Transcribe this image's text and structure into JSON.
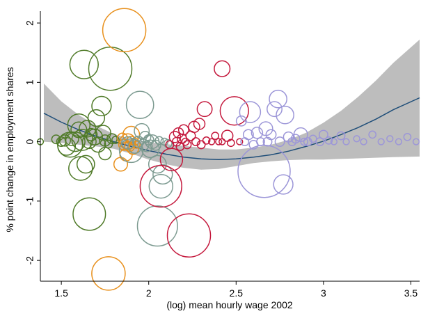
{
  "chart_data": {
    "type": "scatter",
    "title": "",
    "xlabel": "(log) mean hourly wage 2002",
    "ylabel": "% point change in employment shares",
    "xlim": [
      1.38,
      3.55
    ],
    "ylim": [
      -2.35,
      2.2
    ],
    "x_ticks": [
      {
        "value": 1.5,
        "label": "1.5"
      },
      {
        "value": 2,
        "label": "2"
      },
      {
        "value": 2.5,
        "label": "2.5"
      },
      {
        "value": 3,
        "label": "3"
      },
      {
        "value": 3.5,
        "label": "3.5"
      }
    ],
    "y_ticks": [
      {
        "value": 2,
        "label": "2"
      },
      {
        "value": 1,
        "label": "1"
      },
      {
        "value": 0,
        "label": "0"
      },
      {
        "value": -1,
        "label": "-1"
      },
      {
        "value": -2,
        "label": "-2"
      }
    ],
    "grid": false,
    "legend": "none",
    "fit": {
      "kind": "quadratic",
      "color": "#1f4e79",
      "band_color": "#bdbdbd",
      "points": [
        {
          "x": 1.4,
          "y": 0.48,
          "lo": 0.0,
          "hi": 0.98
        },
        {
          "x": 1.5,
          "y": 0.33,
          "lo": -0.02,
          "hi": 0.68
        },
        {
          "x": 1.6,
          "y": 0.2,
          "lo": -0.05,
          "hi": 0.45
        },
        {
          "x": 1.7,
          "y": 0.09,
          "lo": -0.08,
          "hi": 0.27
        },
        {
          "x": 1.8,
          "y": 0.0,
          "lo": -0.12,
          "hi": 0.13
        },
        {
          "x": 1.9,
          "y": -0.08,
          "lo": -0.2,
          "hi": 0.04
        },
        {
          "x": 2.0,
          "y": -0.15,
          "lo": -0.3,
          "hi": -0.01
        },
        {
          "x": 2.1,
          "y": -0.21,
          "lo": -0.38,
          "hi": -0.04
        },
        {
          "x": 2.2,
          "y": -0.26,
          "lo": -0.44,
          "hi": -0.07
        },
        {
          "x": 2.3,
          "y": -0.29,
          "lo": -0.47,
          "hi": -0.1
        },
        {
          "x": 2.4,
          "y": -0.3,
          "lo": -0.46,
          "hi": -0.13
        },
        {
          "x": 2.5,
          "y": -0.29,
          "lo": -0.41,
          "hi": -0.13
        },
        {
          "x": 2.6,
          "y": -0.26,
          "lo": -0.36,
          "hi": -0.1
        },
        {
          "x": 2.7,
          "y": -0.22,
          "lo": -0.33,
          "hi": -0.05
        },
        {
          "x": 2.8,
          "y": -0.16,
          "lo": -0.31,
          "hi": 0.03
        },
        {
          "x": 2.9,
          "y": -0.08,
          "lo": -0.3,
          "hi": 0.15
        },
        {
          "x": 3.0,
          "y": 0.01,
          "lo": -0.3,
          "hi": 0.32
        },
        {
          "x": 3.1,
          "y": 0.12,
          "lo": -0.29,
          "hi": 0.52
        },
        {
          "x": 3.2,
          "y": 0.24,
          "lo": -0.28,
          "hi": 0.76
        },
        {
          "x": 3.3,
          "y": 0.38,
          "lo": -0.27,
          "hi": 1.03
        },
        {
          "x": 3.4,
          "y": 0.54,
          "lo": -0.26,
          "hi": 1.33
        },
        {
          "x": 3.55,
          "y": 0.74,
          "lo": -0.25,
          "hi": 1.72
        }
      ]
    },
    "series": [
      {
        "color": "#4f7a28",
        "points": [
          {
            "x": 1.38,
            "y": 0.0,
            "size": 0.3
          },
          {
            "x": 1.47,
            "y": 0.04,
            "size": 0.6
          },
          {
            "x": 1.5,
            "y": 0.0,
            "size": 0.7
          },
          {
            "x": 1.52,
            "y": 0.02,
            "size": 1.0
          },
          {
            "x": 1.53,
            "y": -0.08,
            "size": 2.5
          },
          {
            "x": 1.55,
            "y": -0.05,
            "size": 5.0
          },
          {
            "x": 1.56,
            "y": 0.05,
            "size": 1.5
          },
          {
            "x": 1.58,
            "y": 0.0,
            "size": 3.0
          },
          {
            "x": 1.6,
            "y": 0.28,
            "size": 4.0
          },
          {
            "x": 1.6,
            "y": 0.2,
            "size": 2.0
          },
          {
            "x": 1.61,
            "y": -0.45,
            "size": 4.5
          },
          {
            "x": 1.62,
            "y": 0.03,
            "size": 3.5
          },
          {
            "x": 1.63,
            "y": 1.3,
            "size": 6.5
          },
          {
            "x": 1.64,
            "y": -0.38,
            "size": 2.5
          },
          {
            "x": 1.65,
            "y": 0.22,
            "size": 2.2
          },
          {
            "x": 1.66,
            "y": 0.0,
            "size": 1.5
          },
          {
            "x": 1.67,
            "y": 0.12,
            "size": 1.2
          },
          {
            "x": 1.66,
            "y": -1.22,
            "size": 8.5
          },
          {
            "x": 1.69,
            "y": 0.08,
            "size": 2.0
          },
          {
            "x": 1.7,
            "y": 0.4,
            "size": 2.2
          },
          {
            "x": 1.71,
            "y": -0.05,
            "size": 1.8
          },
          {
            "x": 1.73,
            "y": 0.6,
            "size": 3.0
          },
          {
            "x": 1.74,
            "y": 0.15,
            "size": 1.8
          },
          {
            "x": 1.75,
            "y": -0.2,
            "size": 1.2
          },
          {
            "x": 1.75,
            "y": 0.02,
            "size": 1.0
          },
          {
            "x": 1.77,
            "y": -0.04,
            "size": 0.5
          },
          {
            "x": 1.78,
            "y": 1.23,
            "size": 15.0
          },
          {
            "x": 1.79,
            "y": 0.05,
            "size": 0.8
          },
          {
            "x": 1.81,
            "y": 0.03,
            "size": 0.4
          }
        ]
      },
      {
        "color": "#e8901c",
        "points": [
          {
            "x": 1.77,
            "y": -2.22,
            "size": 9.0
          },
          {
            "x": 1.84,
            "y": -0.38,
            "size": 1.5
          },
          {
            "x": 1.85,
            "y": 0.06,
            "size": 0.8
          },
          {
            "x": 1.86,
            "y": 1.88,
            "size": 15.0
          },
          {
            "x": 1.86,
            "y": -0.05,
            "size": 1.0
          },
          {
            "x": 1.87,
            "y": -0.22,
            "size": 1.2
          },
          {
            "x": 1.88,
            "y": 0.0,
            "size": 2.0
          },
          {
            "x": 1.89,
            "y": -0.08,
            "size": 0.8
          },
          {
            "x": 1.9,
            "y": 0.02,
            "size": 0.6
          },
          {
            "x": 1.9,
            "y": 0.12,
            "size": 2.2
          },
          {
            "x": 1.91,
            "y": -0.12,
            "size": 1.0
          },
          {
            "x": 1.92,
            "y": 0.0,
            "size": 0.5
          },
          {
            "x": 1.93,
            "y": -0.05,
            "size": 0.4
          }
        ]
      },
      {
        "color": "#7c9a90",
        "points": [
          {
            "x": 1.88,
            "y": -0.02,
            "size": 1.2
          },
          {
            "x": 1.9,
            "y": -0.15,
            "size": 4.5
          },
          {
            "x": 1.92,
            "y": -0.08,
            "size": 1.5
          },
          {
            "x": 1.94,
            "y": 0.0,
            "size": 1.0
          },
          {
            "x": 1.95,
            "y": 0.62,
            "size": 6.0
          },
          {
            "x": 1.96,
            "y": 0.18,
            "size": 1.8
          },
          {
            "x": 1.97,
            "y": -0.05,
            "size": 1.0
          },
          {
            "x": 1.98,
            "y": 0.08,
            "size": 1.0
          },
          {
            "x": 1.99,
            "y": -0.08,
            "size": 0.9
          },
          {
            "x": 2.0,
            "y": 0.03,
            "size": 0.8
          },
          {
            "x": 2.01,
            "y": -0.12,
            "size": 2.5
          },
          {
            "x": 2.02,
            "y": 0.0,
            "size": 1.5
          },
          {
            "x": 2.04,
            "y": -0.06,
            "size": 0.8
          },
          {
            "x": 2.05,
            "y": -1.42,
            "size": 13.0
          },
          {
            "x": 2.05,
            "y": -0.38,
            "size": 2.5
          },
          {
            "x": 2.06,
            "y": 0.02,
            "size": 0.5
          },
          {
            "x": 2.07,
            "y": -0.75,
            "size": 4.5
          },
          {
            "x": 2.08,
            "y": -0.55,
            "size": 3.0
          },
          {
            "x": 2.09,
            "y": 0.0,
            "size": 0.4
          },
          {
            "x": 2.11,
            "y": -0.03,
            "size": 0.5
          }
        ]
      },
      {
        "color": "#c4183c",
        "points": [
          {
            "x": 2.07,
            "y": -0.75,
            "size": 14.0
          },
          {
            "x": 2.12,
            "y": -0.05,
            "size": 0.5
          },
          {
            "x": 2.13,
            "y": -0.3,
            "size": 4.0
          },
          {
            "x": 2.15,
            "y": 0.08,
            "size": 1.0
          },
          {
            "x": 2.16,
            "y": 0.0,
            "size": 0.6
          },
          {
            "x": 2.17,
            "y": 0.15,
            "size": 0.8
          },
          {
            "x": 2.18,
            "y": -0.08,
            "size": 0.5
          },
          {
            "x": 2.19,
            "y": 0.05,
            "size": 0.7
          },
          {
            "x": 2.2,
            "y": 0.2,
            "size": 0.8
          },
          {
            "x": 2.21,
            "y": 0.0,
            "size": 0.4
          },
          {
            "x": 2.22,
            "y": -0.05,
            "size": 0.5
          },
          {
            "x": 2.23,
            "y": -1.58,
            "size": 15.0
          },
          {
            "x": 2.24,
            "y": 0.1,
            "size": 0.7
          },
          {
            "x": 2.26,
            "y": 0.25,
            "size": 1.0
          },
          {
            "x": 2.27,
            "y": 0.0,
            "size": 0.5
          },
          {
            "x": 2.29,
            "y": 0.3,
            "size": 1.0
          },
          {
            "x": 2.3,
            "y": -0.05,
            "size": 0.5
          },
          {
            "x": 2.32,
            "y": 0.55,
            "size": 1.8
          },
          {
            "x": 2.33,
            "y": 0.02,
            "size": 0.4
          },
          {
            "x": 2.36,
            "y": 0.0,
            "size": 0.3
          },
          {
            "x": 2.38,
            "y": 0.1,
            "size": 0.4
          },
          {
            "x": 2.4,
            "y": 0.0,
            "size": 0.3
          },
          {
            "x": 2.42,
            "y": 1.23,
            "size": 2.0
          },
          {
            "x": 2.42,
            "y": 0.0,
            "size": 0.3
          },
          {
            "x": 2.45,
            "y": 0.1,
            "size": 1.0
          },
          {
            "x": 2.47,
            "y": -0.02,
            "size": 0.4
          },
          {
            "x": 2.49,
            "y": 0.52,
            "size": 6.5
          },
          {
            "x": 2.52,
            "y": 0.0,
            "size": 0.3
          }
        ]
      },
      {
        "color": "#9c96d8",
        "points": [
          {
            "x": 2.53,
            "y": 0.35,
            "size": 0.8
          },
          {
            "x": 2.55,
            "y": 0.0,
            "size": 0.5
          },
          {
            "x": 2.57,
            "y": 0.12,
            "size": 0.8
          },
          {
            "x": 2.58,
            "y": 0.5,
            "size": 3.5
          },
          {
            "x": 2.6,
            "y": -0.05,
            "size": 0.6
          },
          {
            "x": 2.62,
            "y": 0.15,
            "size": 1.0
          },
          {
            "x": 2.64,
            "y": 0.0,
            "size": 0.5
          },
          {
            "x": 2.66,
            "y": -0.5,
            "size": 22.0
          },
          {
            "x": 2.67,
            "y": 0.22,
            "size": 1.5
          },
          {
            "x": 2.68,
            "y": 0.0,
            "size": 0.6
          },
          {
            "x": 2.7,
            "y": 0.12,
            "size": 0.8
          },
          {
            "x": 2.72,
            "y": 0.55,
            "size": 1.8
          },
          {
            "x": 2.74,
            "y": 0.72,
            "size": 2.5
          },
          {
            "x": 2.75,
            "y": 0.0,
            "size": 0.7
          },
          {
            "x": 2.77,
            "y": -0.72,
            "size": 3.0
          },
          {
            "x": 2.78,
            "y": 0.45,
            "size": 2.5
          },
          {
            "x": 2.8,
            "y": 0.08,
            "size": 0.8
          },
          {
            "x": 2.82,
            "y": 0.0,
            "size": 0.5
          },
          {
            "x": 2.84,
            "y": 0.05,
            "size": 0.6
          },
          {
            "x": 2.87,
            "y": 0.12,
            "size": 1.5
          },
          {
            "x": 2.89,
            "y": 0.0,
            "size": 0.4
          },
          {
            "x": 2.91,
            "y": 0.0,
            "size": 0.5
          },
          {
            "x": 2.94,
            "y": 0.05,
            "size": 0.4
          },
          {
            "x": 2.98,
            "y": 0.0,
            "size": 0.5
          },
          {
            "x": 3.0,
            "y": 0.12,
            "size": 0.6
          },
          {
            "x": 3.03,
            "y": 0.02,
            "size": 0.4
          },
          {
            "x": 3.06,
            "y": 0.0,
            "size": 0.3
          },
          {
            "x": 3.1,
            "y": 0.1,
            "size": 0.5
          },
          {
            "x": 3.13,
            "y": 0.0,
            "size": 0.3
          },
          {
            "x": 3.19,
            "y": 0.05,
            "size": 0.3
          },
          {
            "x": 3.23,
            "y": 0.0,
            "size": 0.3
          },
          {
            "x": 3.28,
            "y": 0.12,
            "size": 0.4
          },
          {
            "x": 3.33,
            "y": 0.0,
            "size": 0.3
          },
          {
            "x": 3.38,
            "y": 0.05,
            "size": 0.3
          },
          {
            "x": 3.43,
            "y": 0.0,
            "size": 0.3
          },
          {
            "x": 3.48,
            "y": 0.08,
            "size": 0.4
          },
          {
            "x": 3.53,
            "y": 0.0,
            "size": 0.3
          }
        ]
      }
    ]
  }
}
